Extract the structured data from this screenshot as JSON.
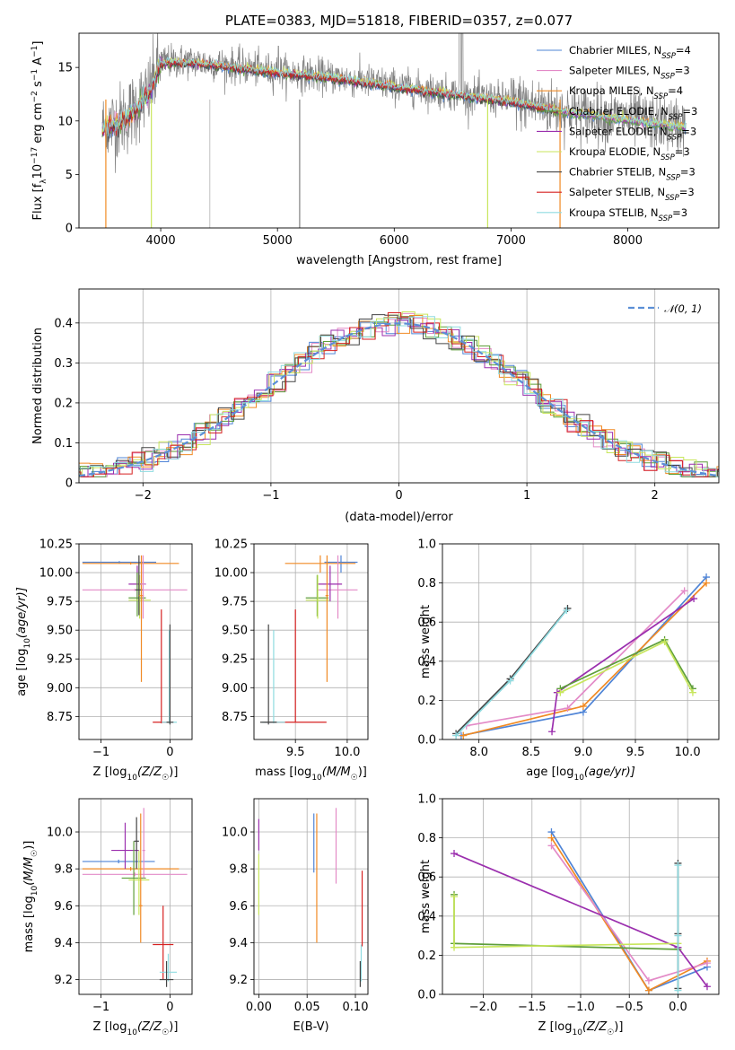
{
  "chart_data": [
    {
      "id": "spectrum",
      "type": "line",
      "title": "PLATE=0383, MJD=51818, FIBERID=0357, z=0.077",
      "xlabel": "wavelength [Angstrom, rest frame]",
      "ylabel_parts": [
        "Flux [f",
        "λ",
        "10",
        "−17",
        " erg cm",
        "−2",
        " s",
        "−1",
        " A",
        "−1",
        "]"
      ],
      "xlim": [
        3300,
        8780
      ],
      "ylim": [
        0,
        18.2
      ],
      "xticks": [
        4000,
        5000,
        6000,
        7000,
        8000
      ],
      "yticks": [
        0,
        5,
        10,
        15
      ],
      "observed_color": "#808080",
      "legend": [
        {
          "label": "Chabrier MILES, N",
          "sub": "SSP",
          "tail": "=4",
          "color": "#4f84d6"
        },
        {
          "label": "Salpeter MILES, N",
          "sub": "SSP",
          "tail": "=3",
          "color": "#e38ac7"
        },
        {
          "label": "Kroupa MILES, N",
          "sub": "SSP",
          "tail": "=4",
          "color": "#f08a24"
        },
        {
          "label": "Chabrier ELODIE, N",
          "sub": "SSP",
          "tail": "=3",
          "color": "#5e9e3a"
        },
        {
          "label": "Salpeter ELODIE, N",
          "sub": "SSP",
          "tail": "=3",
          "color": "#9b2fae"
        },
        {
          "label": "Kroupa ELODIE, N",
          "sub": "SSP",
          "tail": "=3",
          "color": "#c8e65c"
        },
        {
          "label": "Chabrier STELIB, N",
          "sub": "SSP",
          "tail": "=3",
          "color": "#444444"
        },
        {
          "label": "Salpeter STELIB, N",
          "sub": "SSP",
          "tail": "=3",
          "color": "#d62020"
        },
        {
          "label": "Kroupa STELIB, N",
          "sub": "SSP",
          "tail": "=3",
          "color": "#8fdbe0"
        }
      ],
      "continuum": {
        "x": [
          3500,
          3700,
          3900,
          4000,
          4200,
          4500,
          5000,
          5500,
          6000,
          6500,
          7000,
          7500,
          8000,
          8500
        ],
        "y": [
          9.3,
          10.3,
          12.6,
          15.5,
          15.6,
          15.3,
          14.6,
          14.1,
          13.3,
          12.6,
          11.9,
          10.9,
          10.2,
          9.5
        ]
      },
      "models_end": [
        8100,
        8500,
        8500
      ]
    },
    {
      "id": "residuals",
      "type": "line",
      "xlabel": "(data-model)/error",
      "ylabel": "Normed distribution",
      "xlim": [
        -2.5,
        2.5
      ],
      "ylim": [
        0,
        0.485
      ],
      "xticks": [
        -2,
        -1,
        0,
        1,
        2
      ],
      "yticks": [
        0.0,
        0.1,
        0.2,
        0.3,
        0.4
      ],
      "legend_label": "𝒩(0, 1)",
      "gaussian_color": "#5b8fd6",
      "hist_bin_width": 0.1,
      "histograms": [
        {
          "color": "#4f84d6",
          "offset": 0.0
        },
        {
          "color": "#e38ac7",
          "offset": 0.02
        },
        {
          "color": "#f08a24",
          "offset": -0.015
        },
        {
          "color": "#5e9e3a",
          "offset": 0.01
        },
        {
          "color": "#9b2fae",
          "offset": -0.03
        },
        {
          "color": "#c8e65c",
          "offset": 0.025
        },
        {
          "color": "#444444",
          "offset": -0.01
        },
        {
          "color": "#d62020",
          "offset": 0.015
        },
        {
          "color": "#8fdbe0",
          "offset": -0.02
        }
      ]
    },
    {
      "id": "age-vs-Z",
      "type": "scatter",
      "xlabel_parts": [
        "Z [log",
        "10",
        "(Z/Z",
        "☉",
        ")]"
      ],
      "ylabel_parts": [
        "age  [log",
        "10",
        "(age/yr)]"
      ],
      "xlim": [
        -1.32,
        0.32
      ],
      "ylim": [
        8.55,
        10.25
      ],
      "xticks": [
        -1,
        0
      ],
      "yticks": [
        8.75,
        9.0,
        9.25,
        9.5,
        9.75,
        10.0,
        10.25
      ],
      "ytick_labels": [
        "8.75",
        "9.00",
        "9.25",
        "9.50",
        "9.75",
        "10.00",
        "10.25"
      ],
      "points": [
        {
          "color": "#4f84d6",
          "x": -1.27,
          "y": 10.09,
          "x2": -0.2,
          "y1": 10.08,
          "y2": 10.1
        },
        {
          "color": "#f08a24",
          "x": -1.27,
          "y": 10.08,
          "x2": 0.13,
          "y1": 10.07,
          "y2": 10.09
        },
        {
          "color": "#e38ac7",
          "x": -1.27,
          "y": 9.85,
          "x2": 0.25,
          "y1": 9.84,
          "y2": 9.86
        },
        {
          "color": "#9b2fae",
          "x": -0.6,
          "y": 9.9,
          "x2": -0.35,
          "y1": 9.75,
          "y2": 10.06
        },
        {
          "color": "#5e9e3a",
          "x": -0.6,
          "y": 9.78,
          "x2": -0.35,
          "y1": 9.62,
          "y2": 10.0
        },
        {
          "color": "#c8e65c",
          "x": -0.6,
          "y": 9.76,
          "x2": -0.28,
          "y1": 9.6,
          "y2": 9.98
        },
        {
          "color": "#444444",
          "x": -0.5,
          "y": 9.85,
          "x2": -0.4,
          "y1": 9.63,
          "y2": 10.15
        },
        {
          "color": "#f08a24",
          "x": -0.45,
          "y": 9.8,
          "x2": -0.38,
          "y1": 9.05,
          "y2": 10.15
        },
        {
          "color": "#e38ac7",
          "x": -0.42,
          "y": 9.9,
          "x2": -0.36,
          "y1": 9.6,
          "y2": 10.15
        },
        {
          "color": "#d62020",
          "x": -0.25,
          "y": 8.7,
          "x2": 0.0,
          "y1": 8.69,
          "y2": 9.68
        },
        {
          "color": "#8fdbe0",
          "x": -0.12,
          "y": 8.7,
          "x2": 0.1,
          "y1": 8.69,
          "y2": 9.5
        },
        {
          "color": "#444444",
          "x": -0.05,
          "y": 8.7,
          "x2": 0.05,
          "y1": 8.68,
          "y2": 9.55
        }
      ]
    },
    {
      "id": "age-vs-mass",
      "type": "scatter",
      "xlabel_parts": [
        "mass [log",
        "10",
        "(M/M",
        "☉",
        ")]"
      ],
      "xlim": [
        9.1,
        10.2
      ],
      "ylim": [
        8.55,
        10.25
      ],
      "xticks": [
        9.5,
        10.0
      ],
      "xtick_labels": [
        "9.5",
        "10.0"
      ],
      "yticks": [
        8.75,
        9.0,
        9.25,
        9.5,
        9.75,
        10.0,
        10.25
      ],
      "ytick_labels": [
        "8.75",
        "9.00",
        "9.25",
        "9.50",
        "9.75",
        "10.00",
        "10.25"
      ],
      "points": [
        {
          "color": "#4f84d6",
          "x": 9.78,
          "y": 10.09,
          "x2": 10.1,
          "y1": 10.0,
          "y2": 10.15
        },
        {
          "color": "#f08a24",
          "x": 9.4,
          "y": 10.08,
          "x2": 10.08,
          "y1": 10.0,
          "y2": 10.15
        },
        {
          "color": "#e38ac7",
          "x": 9.72,
          "y": 9.85,
          "x2": 10.1,
          "y1": 9.6,
          "y2": 10.15
        },
        {
          "color": "#9b2fae",
          "x": 9.72,
          "y": 9.9,
          "x2": 9.95,
          "y1": 9.75,
          "y2": 10.06
        },
        {
          "color": "#5e9e3a",
          "x": 9.6,
          "y": 9.78,
          "x2": 9.82,
          "y1": 9.62,
          "y2": 9.98
        },
        {
          "color": "#c8e65c",
          "x": 9.6,
          "y": 9.76,
          "x2": 9.83,
          "y1": 9.6,
          "y2": 9.98
        },
        {
          "color": "#f08a24",
          "x": 9.79,
          "y": 9.8,
          "x2": 9.82,
          "y1": 9.05,
          "y2": 10.15
        },
        {
          "color": "#d62020",
          "x": 9.2,
          "y": 8.7,
          "x2": 9.8,
          "y1": 8.7,
          "y2": 9.68
        },
        {
          "color": "#8fdbe0",
          "x": 9.18,
          "y": 8.7,
          "x2": 9.4,
          "y1": 8.69,
          "y2": 9.5
        },
        {
          "color": "#444444",
          "x": 9.16,
          "y": 8.7,
          "x2": 9.32,
          "y1": 8.68,
          "y2": 9.55
        }
      ]
    },
    {
      "id": "mass-weight-vs-age",
      "type": "line",
      "xlabel_parts": [
        "age  [log",
        "10",
        "(age/yr)]"
      ],
      "ylabel": "mass weight",
      "xlim": [
        7.65,
        10.3
      ],
      "ylim": [
        0,
        1.0
      ],
      "xticks": [
        8.0,
        8.5,
        9.0,
        9.5,
        10.0
      ],
      "xtick_labels": [
        "8.0",
        "8.5",
        "9.0",
        "9.5",
        "10.0"
      ],
      "yticks": [
        0,
        0.2,
        0.4,
        0.6,
        0.8,
        1.0
      ],
      "ytick_labels": [
        "0.0",
        "0.2",
        "0.4",
        "0.6",
        "0.8",
        "1.0"
      ],
      "series": [
        {
          "color": "#4f84d6",
          "x": [
            7.83,
            9.0,
            10.18
          ],
          "y": [
            0.02,
            0.14,
            0.83
          ]
        },
        {
          "color": "#f08a24",
          "x": [
            7.85,
            9.0,
            10.18
          ],
          "y": [
            0.02,
            0.17,
            0.8
          ]
        },
        {
          "color": "#e38ac7",
          "x": [
            7.88,
            8.85,
            9.97
          ],
          "y": [
            0.07,
            0.16,
            0.76
          ]
        },
        {
          "color": "#9b2fae",
          "x": [
            8.7,
            8.75,
            10.06
          ],
          "y": [
            0.04,
            0.24,
            0.72
          ]
        },
        {
          "color": "#5e9e3a",
          "x": [
            8.78,
            9.78,
            10.05
          ],
          "y": [
            0.26,
            0.51,
            0.26
          ]
        },
        {
          "color": "#c8e65c",
          "x": [
            8.78,
            9.78,
            10.05
          ],
          "y": [
            0.24,
            0.5,
            0.24
          ]
        },
        {
          "color": "#444444",
          "x": [
            7.78,
            8.3,
            8.85
          ],
          "y": [
            0.03,
            0.31,
            0.67
          ]
        },
        {
          "color": "#8fdbe0",
          "x": [
            7.78,
            8.3,
            8.84
          ],
          "y": [
            0.02,
            0.3,
            0.66
          ]
        }
      ]
    },
    {
      "id": "mass-vs-Z",
      "type": "scatter",
      "xlabel_parts": [
        "Z [log",
        "10",
        "(Z/Z",
        "☉",
        ")]"
      ],
      "ylabel_parts": [
        "mass [log",
        "10",
        "(M/M",
        "☉",
        ")]"
      ],
      "xlim": [
        -1.32,
        0.32
      ],
      "ylim": [
        9.12,
        10.18
      ],
      "xticks": [
        -1,
        0
      ],
      "yticks": [
        9.2,
        9.4,
        9.6,
        9.8,
        10.0
      ],
      "ytick_labels": [
        "9.2",
        "9.4",
        "9.6",
        "9.8",
        "10.0"
      ],
      "points": [
        {
          "color": "#4f84d6",
          "x": -1.27,
          "y": 9.84,
          "x2": -0.22,
          "y1": 9.83,
          "y2": 9.85
        },
        {
          "color": "#f08a24",
          "x": -1.27,
          "y": 9.8,
          "x2": 0.13,
          "y1": 9.79,
          "y2": 9.81
        },
        {
          "color": "#e38ac7",
          "x": -1.27,
          "y": 9.77,
          "x2": 0.25,
          "y1": 9.76,
          "y2": 9.78
        },
        {
          "color": "#9b2fae",
          "x": -0.85,
          "y": 9.9,
          "x2": -0.45,
          "y1": 9.8,
          "y2": 10.05
        },
        {
          "color": "#5e9e3a",
          "x": -0.7,
          "y": 9.75,
          "x2": -0.35,
          "y1": 9.55,
          "y2": 9.95
        },
        {
          "color": "#c8e65c",
          "x": -0.6,
          "y": 9.74,
          "x2": -0.3,
          "y1": 9.55,
          "y2": 9.9
        },
        {
          "color": "#444444",
          "x": -0.52,
          "y": 9.95,
          "x2": -0.45,
          "y1": 9.8,
          "y2": 10.08
        },
        {
          "color": "#f08a24",
          "x": -0.45,
          "y": 9.6,
          "x2": -0.4,
          "y1": 9.4,
          "y2": 10.1
        },
        {
          "color": "#e38ac7",
          "x": -0.4,
          "y": 9.9,
          "x2": -0.36,
          "y1": 9.75,
          "y2": 10.13
        },
        {
          "color": "#d62020",
          "x": -0.25,
          "y": 9.39,
          "x2": 0.05,
          "y1": 9.2,
          "y2": 9.6
        },
        {
          "color": "#8fdbe0",
          "x": -0.15,
          "y": 9.24,
          "x2": 0.1,
          "y1": 9.19,
          "y2": 9.34
        },
        {
          "color": "#444444",
          "x": -0.15,
          "y": 9.2,
          "x2": 0.05,
          "y1": 9.16,
          "y2": 9.3
        }
      ]
    },
    {
      "id": "mass-vs-EBV",
      "type": "scatter",
      "xlabel": "E(B-V)",
      "xlim": [
        -0.005,
        0.113
      ],
      "ylim": [
        9.12,
        10.18
      ],
      "xticks": [
        0.0,
        0.05,
        0.1
      ],
      "xtick_labels": [
        "0.00",
        "0.05",
        "0.10"
      ],
      "yticks": [
        9.2,
        9.4,
        9.6,
        9.8,
        10.0
      ],
      "ytick_labels": [
        "9.2",
        "9.4",
        "9.6",
        "9.8",
        "10.0"
      ],
      "points": [
        {
          "color": "#9b2fae",
          "x": 0.0,
          "y1": 9.9,
          "y2": 10.07
        },
        {
          "color": "#c8e65c",
          "x": 0.0,
          "y1": 9.55,
          "y2": 9.88
        },
        {
          "color": "#4f84d6",
          "x": 0.057,
          "y1": 9.78,
          "y2": 10.1
        },
        {
          "color": "#f08a24",
          "x": 0.06,
          "y1": 9.4,
          "y2": 10.1
        },
        {
          "color": "#e38ac7",
          "x": 0.08,
          "y1": 9.72,
          "y2": 10.13
        },
        {
          "color": "#d62020",
          "x": 0.107,
          "y1": 9.38,
          "y2": 9.79
        },
        {
          "color": "#8fdbe0",
          "x": 0.106,
          "y1": 9.19,
          "y2": 9.39
        },
        {
          "color": "#444444",
          "x": 0.105,
          "y1": 9.16,
          "y2": 9.3
        }
      ]
    },
    {
      "id": "mass-weight-vs-Z",
      "type": "line",
      "xlabel_parts": [
        "Z [log",
        "10",
        "(Z/Z",
        "☉",
        ")]"
      ],
      "ylabel": "mass weight",
      "xlim": [
        -2.42,
        0.42
      ],
      "ylim": [
        0,
        1.0
      ],
      "xticks": [
        -2.0,
        -1.5,
        -1.0,
        -0.5,
        0.0
      ],
      "xtick_labels": [
        "−2.0",
        "−1.5",
        "−1.0",
        "−0.5",
        "0.0"
      ],
      "yticks": [
        0,
        0.2,
        0.4,
        0.6,
        0.8,
        1.0
      ],
      "ytick_labels": [
        "0.0",
        "0.2",
        "0.4",
        "0.6",
        "0.8",
        "1.0"
      ],
      "series": [
        {
          "color": "#4f84d6",
          "x": [
            -1.3,
            -0.3,
            0.3
          ],
          "y": [
            0.83,
            0.02,
            0.14
          ]
        },
        {
          "color": "#f08a24",
          "x": [
            -1.3,
            -0.3,
            0.3
          ],
          "y": [
            0.8,
            0.02,
            0.17
          ]
        },
        {
          "color": "#e38ac7",
          "x": [
            -1.3,
            -0.3,
            0.3
          ],
          "y": [
            0.76,
            0.07,
            0.16
          ]
        },
        {
          "color": "#9b2fae",
          "x": [
            -2.3,
            0.0,
            0.3
          ],
          "y": [
            0.72,
            0.24,
            0.04
          ]
        },
        {
          "color": "#5e9e3a",
          "x": [
            -2.3,
            -2.3,
            0.0
          ],
          "y": [
            0.51,
            0.26,
            0.23
          ]
        },
        {
          "color": "#c8e65c",
          "x": [
            -2.3,
            -2.3,
            0.0
          ],
          "y": [
            0.5,
            0.24,
            0.26
          ]
        },
        {
          "color": "#444444",
          "x": [
            0.0,
            0.0,
            0.0
          ],
          "y": [
            0.67,
            0.31,
            0.03
          ]
        },
        {
          "color": "#8fdbe0",
          "x": [
            0.0,
            0.0,
            0.0
          ],
          "y": [
            0.66,
            0.3,
            0.02
          ]
        }
      ]
    }
  ]
}
